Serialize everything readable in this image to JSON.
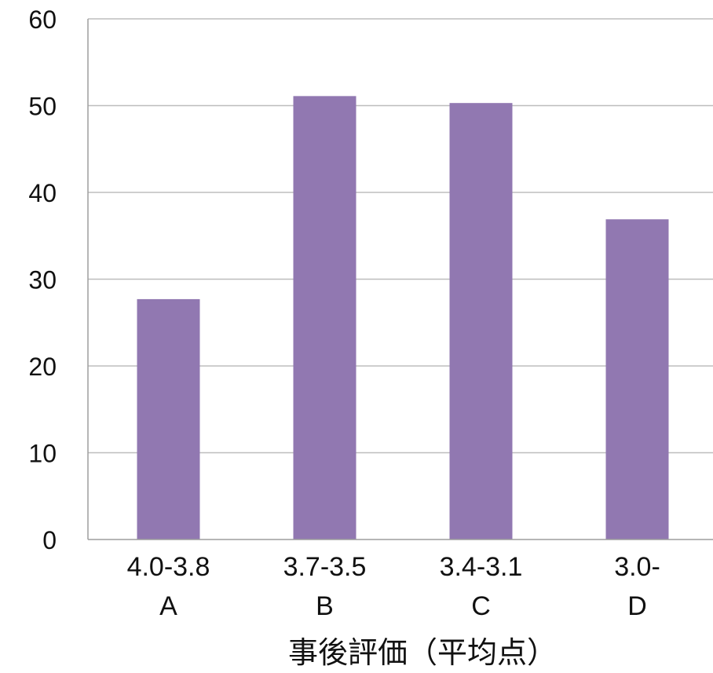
{
  "chart_data": {
    "type": "bar",
    "categories": [
      [
        "4.0-3.8",
        "A"
      ],
      [
        "3.7-3.5",
        "B"
      ],
      [
        "3.4-3.1",
        "C"
      ],
      [
        "3.0-",
        "D"
      ]
    ],
    "values": [
      27.7,
      51.1,
      50.3,
      36.9
    ],
    "xlabel": "事後評価（平均点）",
    "ylabel": "",
    "ylim": [
      0,
      60
    ],
    "yticks": [
      0,
      10,
      20,
      30,
      40,
      50,
      60
    ],
    "grid": true,
    "legend": "none",
    "bar_color": "#9178B1"
  }
}
